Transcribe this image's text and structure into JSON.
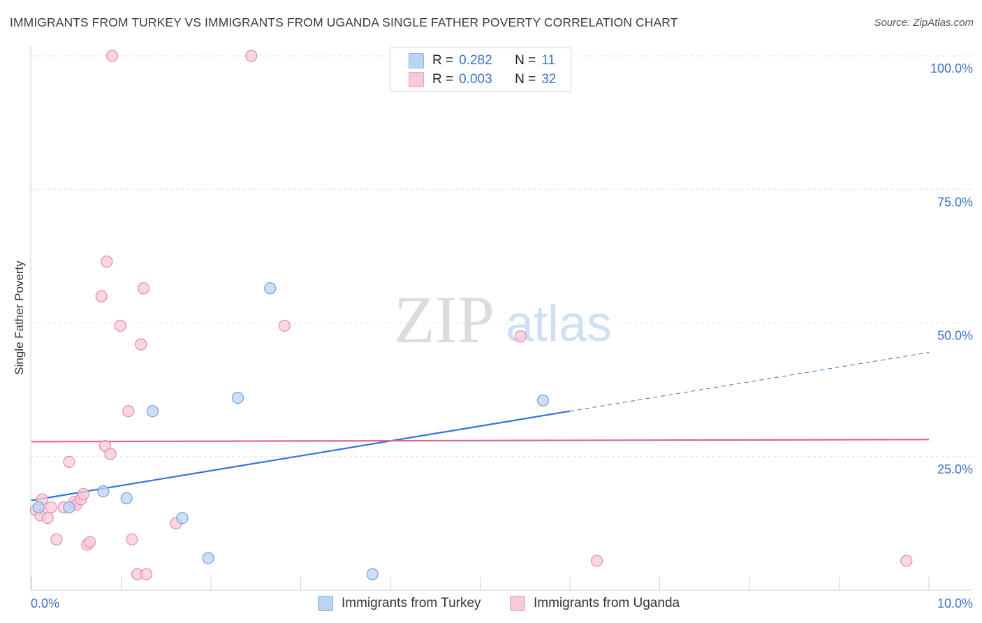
{
  "title": "IMMIGRANTS FROM TURKEY VS IMMIGRANTS FROM UGANDA SINGLE FATHER POVERTY CORRELATION CHART",
  "source": "Source: ZipAtlas.com",
  "watermark": {
    "zip": "ZIP",
    "atlas": "atlas"
  },
  "legend": {
    "rows": [
      {
        "r_label": "R =",
        "r_value": "0.282",
        "n_label": "N =",
        "n_value": "11",
        "color": "#a9c8f0"
      },
      {
        "r_label": "R =",
        "r_value": "0.003",
        "n_label": "N =",
        "n_value": "32",
        "color": "#f6b8cb"
      }
    ]
  },
  "colors": {
    "turkey_fill": "#bcd4f4",
    "turkey_stroke": "#6f9edb",
    "turkey_line": "#3572d4",
    "uganda_fill": "#f8cad8",
    "uganda_stroke": "#e58aa8",
    "uganda_line": "#e0658f",
    "tick_text": "#3b73c9",
    "grid": "#dedede"
  },
  "chart_data": {
    "type": "scatter",
    "title": "IMMIGRANTS FROM TURKEY VS IMMIGRANTS FROM UGANDA SINGLE FATHER POVERTY CORRELATION CHART",
    "xlabel": "",
    "ylabel": "Single Father Poverty",
    "xlim": [
      0,
      10
    ],
    "ylim": [
      0,
      100
    ],
    "x_tick_labels": [
      "0.0%",
      "10.0%"
    ],
    "y_ticks": [
      25,
      50,
      75,
      100
    ],
    "y_tick_labels": [
      "25.0%",
      "50.0%",
      "75.0%",
      "100.0%"
    ],
    "grid": true,
    "series": [
      {
        "name": "Immigrants from Turkey",
        "x": [
          0.08,
          0.42,
          0.8,
          1.06,
          1.35,
          1.68,
          1.97,
          2.3,
          2.66,
          3.8,
          5.7
        ],
        "y": [
          15.5,
          15.5,
          18.5,
          17.2,
          33.5,
          13.5,
          6.0,
          36.0,
          56.5,
          3.0,
          35.5
        ],
        "trend": {
          "x0": 0.0,
          "y0": 16.8,
          "x1": 6.0,
          "y1": 33.5,
          "dash_x1": 10.0,
          "dash_y1": 44.5
        }
      },
      {
        "name": "Immigrants from Uganda",
        "x": [
          0.05,
          0.1,
          0.12,
          0.18,
          0.22,
          0.28,
          0.36,
          0.42,
          0.48,
          0.5,
          0.55,
          0.58,
          0.62,
          0.65,
          0.78,
          0.82,
          0.84,
          0.88,
          0.9,
          0.99,
          1.08,
          1.12,
          1.18,
          1.22,
          1.25,
          1.28,
          1.61,
          2.45,
          2.82,
          5.45,
          6.3,
          9.75
        ],
        "y": [
          15.0,
          14.0,
          17.0,
          13.5,
          15.5,
          9.5,
          15.5,
          24.0,
          16.5,
          16.0,
          17.0,
          18.0,
          8.5,
          9.0,
          55.0,
          27.0,
          61.5,
          25.5,
          100.0,
          49.5,
          33.5,
          9.5,
          3.0,
          46.0,
          56.5,
          3.0,
          12.5,
          100.0,
          49.5,
          47.5,
          5.5,
          5.5
        ],
        "trend": {
          "x0": 0.0,
          "y0": 27.8,
          "x1": 10.0,
          "y1": 28.2
        }
      }
    ],
    "legend_bottom": [
      "Immigrants from Turkey",
      "Immigrants from Uganda"
    ]
  }
}
